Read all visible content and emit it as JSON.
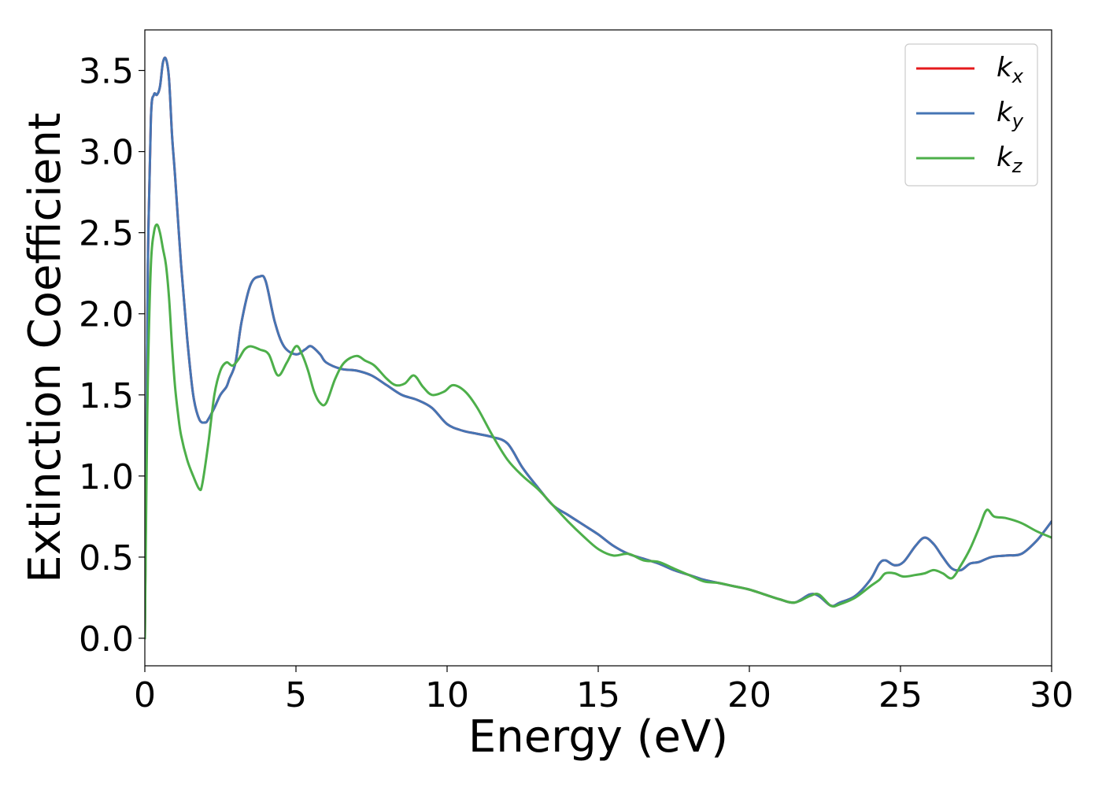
{
  "chart_data": {
    "type": "line",
    "title": "",
    "xlabel": "Energy (eV)",
    "ylabel": "Extinction Coefficient",
    "xlim": [
      0,
      30
    ],
    "ylim": [
      -0.17,
      3.75
    ],
    "xticks": [
      0,
      5,
      10,
      15,
      20,
      25,
      30
    ],
    "yticks": [
      0.0,
      0.5,
      1.0,
      1.5,
      2.0,
      2.5,
      3.0,
      3.5
    ],
    "grid": false,
    "legend_position": "top-right",
    "series": [
      {
        "name": "kx",
        "legend_base": "k",
        "legend_sub": "x",
        "color": "#e41a1c",
        "x": [
          0,
          0.05,
          0.1,
          0.2,
          0.3,
          0.4,
          0.5,
          0.6,
          0.7,
          0.8,
          0.9,
          1.0,
          1.2,
          1.4,
          1.6,
          1.8,
          2.0,
          2.1,
          2.3,
          2.5,
          2.7,
          2.8,
          3.0,
          3.2,
          3.5,
          3.8,
          4.0,
          4.3,
          4.6,
          5.0,
          5.3,
          5.5,
          5.8,
          6.0,
          6.5,
          7.0,
          7.5,
          8.0,
          8.5,
          9.0,
          9.5,
          10.0,
          10.5,
          11.0,
          11.5,
          12.0,
          12.5,
          13.0,
          13.5,
          14.0,
          14.5,
          15.0,
          15.5,
          16.0,
          16.5,
          17.0,
          17.5,
          18.0,
          18.5,
          19.0,
          19.5,
          20.0,
          20.5,
          21.0,
          21.5,
          22.0,
          22.3,
          22.7,
          23.0,
          23.5,
          24.0,
          24.3,
          24.5,
          24.8,
          25.1,
          25.5,
          25.8,
          26.1,
          26.4,
          26.7,
          27.0,
          27.3,
          27.6,
          28.0,
          28.5,
          29.0,
          29.5,
          29.8,
          30.0
        ],
        "y": [
          0,
          1.2,
          2.3,
          3.2,
          3.35,
          3.35,
          3.4,
          3.55,
          3.57,
          3.45,
          3.1,
          2.85,
          2.3,
          1.85,
          1.5,
          1.35,
          1.33,
          1.35,
          1.42,
          1.5,
          1.55,
          1.6,
          1.7,
          1.95,
          2.18,
          2.23,
          2.2,
          1.95,
          1.8,
          1.75,
          1.78,
          1.8,
          1.75,
          1.7,
          1.66,
          1.65,
          1.62,
          1.56,
          1.5,
          1.47,
          1.42,
          1.32,
          1.28,
          1.26,
          1.24,
          1.2,
          1.05,
          0.93,
          0.82,
          0.76,
          0.7,
          0.64,
          0.57,
          0.52,
          0.49,
          0.46,
          0.42,
          0.39,
          0.36,
          0.34,
          0.32,
          0.3,
          0.27,
          0.24,
          0.22,
          0.27,
          0.26,
          0.2,
          0.22,
          0.26,
          0.36,
          0.46,
          0.48,
          0.45,
          0.47,
          0.57,
          0.62,
          0.58,
          0.5,
          0.43,
          0.42,
          0.46,
          0.47,
          0.5,
          0.51,
          0.52,
          0.6,
          0.67,
          0.72
        ]
      },
      {
        "name": "ky",
        "legend_base": "k",
        "legend_sub": "y",
        "color": "#4575b4",
        "x": [
          0,
          0.05,
          0.1,
          0.2,
          0.3,
          0.4,
          0.5,
          0.6,
          0.7,
          0.8,
          0.9,
          1.0,
          1.2,
          1.4,
          1.6,
          1.8,
          2.0,
          2.1,
          2.3,
          2.5,
          2.7,
          2.8,
          3.0,
          3.2,
          3.5,
          3.8,
          4.0,
          4.3,
          4.6,
          5.0,
          5.3,
          5.5,
          5.8,
          6.0,
          6.5,
          7.0,
          7.5,
          8.0,
          8.5,
          9.0,
          9.5,
          10.0,
          10.5,
          11.0,
          11.5,
          12.0,
          12.5,
          13.0,
          13.5,
          14.0,
          14.5,
          15.0,
          15.5,
          16.0,
          16.5,
          17.0,
          17.5,
          18.0,
          18.5,
          19.0,
          19.5,
          20.0,
          20.5,
          21.0,
          21.5,
          22.0,
          22.3,
          22.7,
          23.0,
          23.5,
          24.0,
          24.3,
          24.5,
          24.8,
          25.1,
          25.5,
          25.8,
          26.1,
          26.4,
          26.7,
          27.0,
          27.3,
          27.6,
          28.0,
          28.5,
          29.0,
          29.5,
          29.8,
          30.0
        ],
        "y": [
          0,
          1.2,
          2.3,
          3.2,
          3.35,
          3.35,
          3.4,
          3.55,
          3.57,
          3.45,
          3.1,
          2.85,
          2.3,
          1.85,
          1.5,
          1.35,
          1.33,
          1.35,
          1.42,
          1.5,
          1.55,
          1.6,
          1.7,
          1.95,
          2.18,
          2.23,
          2.2,
          1.95,
          1.8,
          1.75,
          1.78,
          1.8,
          1.75,
          1.7,
          1.66,
          1.65,
          1.62,
          1.56,
          1.5,
          1.47,
          1.42,
          1.32,
          1.28,
          1.26,
          1.24,
          1.2,
          1.05,
          0.93,
          0.82,
          0.76,
          0.7,
          0.64,
          0.57,
          0.52,
          0.49,
          0.46,
          0.42,
          0.39,
          0.36,
          0.34,
          0.32,
          0.3,
          0.27,
          0.24,
          0.22,
          0.27,
          0.26,
          0.2,
          0.22,
          0.26,
          0.36,
          0.46,
          0.48,
          0.45,
          0.47,
          0.57,
          0.62,
          0.58,
          0.5,
          0.43,
          0.42,
          0.46,
          0.47,
          0.5,
          0.51,
          0.52,
          0.6,
          0.67,
          0.72
        ]
      },
      {
        "name": "kz",
        "legend_base": "k",
        "legend_sub": "z",
        "color": "#4daf4a",
        "x": [
          0,
          0.05,
          0.1,
          0.2,
          0.3,
          0.4,
          0.5,
          0.6,
          0.7,
          0.8,
          0.9,
          1.0,
          1.1,
          1.2,
          1.4,
          1.6,
          1.8,
          1.9,
          2.1,
          2.3,
          2.5,
          2.7,
          2.9,
          3.1,
          3.3,
          3.5,
          3.8,
          4.1,
          4.4,
          4.7,
          5.0,
          5.2,
          5.4,
          5.6,
          5.8,
          6.0,
          6.3,
          6.6,
          7.0,
          7.3,
          7.6,
          8.0,
          8.3,
          8.6,
          8.9,
          9.2,
          9.5,
          9.9,
          10.2,
          10.6,
          11.0,
          11.5,
          12.0,
          12.5,
          13.0,
          13.5,
          14.0,
          14.5,
          15.0,
          15.5,
          16.0,
          16.5,
          17.0,
          17.5,
          18.0,
          18.5,
          19.0,
          19.5,
          20.0,
          20.5,
          21.0,
          21.5,
          22.0,
          22.3,
          22.7,
          23.0,
          23.5,
          24.0,
          24.3,
          24.5,
          24.8,
          25.1,
          25.5,
          25.8,
          26.1,
          26.4,
          26.7,
          27.0,
          27.3,
          27.6,
          27.85,
          28.1,
          28.5,
          29.0,
          29.5,
          30.0
        ],
        "y": [
          0,
          0.9,
          1.6,
          2.3,
          2.5,
          2.55,
          2.5,
          2.4,
          2.3,
          2.1,
          1.8,
          1.55,
          1.38,
          1.25,
          1.1,
          1.0,
          0.92,
          0.95,
          1.2,
          1.5,
          1.65,
          1.7,
          1.68,
          1.72,
          1.78,
          1.8,
          1.78,
          1.75,
          1.62,
          1.7,
          1.8,
          1.75,
          1.65,
          1.52,
          1.45,
          1.45,
          1.6,
          1.7,
          1.74,
          1.71,
          1.68,
          1.6,
          1.56,
          1.57,
          1.62,
          1.55,
          1.5,
          1.52,
          1.56,
          1.52,
          1.42,
          1.25,
          1.1,
          1.0,
          0.92,
          0.82,
          0.72,
          0.63,
          0.55,
          0.51,
          0.52,
          0.48,
          0.47,
          0.43,
          0.39,
          0.35,
          0.34,
          0.32,
          0.3,
          0.27,
          0.24,
          0.22,
          0.26,
          0.27,
          0.2,
          0.21,
          0.25,
          0.32,
          0.36,
          0.4,
          0.4,
          0.38,
          0.39,
          0.4,
          0.42,
          0.4,
          0.37,
          0.45,
          0.55,
          0.68,
          0.79,
          0.75,
          0.74,
          0.71,
          0.66,
          0.62
        ]
      }
    ]
  }
}
